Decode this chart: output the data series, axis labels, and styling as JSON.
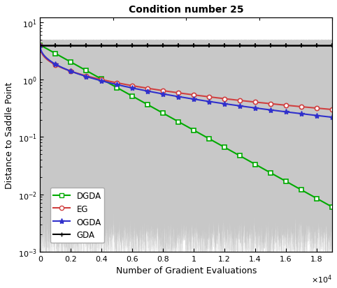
{
  "title": "Condition number 25",
  "xlabel": "Number of Gradient Evaluations",
  "ylabel": "Distance to Saddle Point",
  "xlim": [
    0,
    19000
  ],
  "ylim_bottom": 0.001,
  "ylim_top": 12.0,
  "x_ticks": [
    0,
    2000,
    4000,
    6000,
    8000,
    10000,
    12000,
    14000,
    16000,
    18000
  ],
  "x_tick_labels": [
    "0",
    "0.2",
    "0.4",
    "0.6",
    "0.8",
    "1",
    "1.2",
    "1.4",
    "1.6",
    "1.8"
  ],
  "background_color": "#ffffff",
  "gda_color": "#000000",
  "eg_color": "#d04040",
  "ogda_color": "#3030cc",
  "dgda_color": "#00aa00",
  "gray_color": "#c8c8c8",
  "n_markers": 19,
  "n_total": 19000,
  "start_value": 4.0,
  "dgda_end": 0.006,
  "eg_end": 0.3,
  "ogda_end": 0.22,
  "gda_value": 4.0,
  "title_fontsize": 10,
  "label_fontsize": 9,
  "tick_fontsize": 8,
  "legend_fontsize": 8.5
}
